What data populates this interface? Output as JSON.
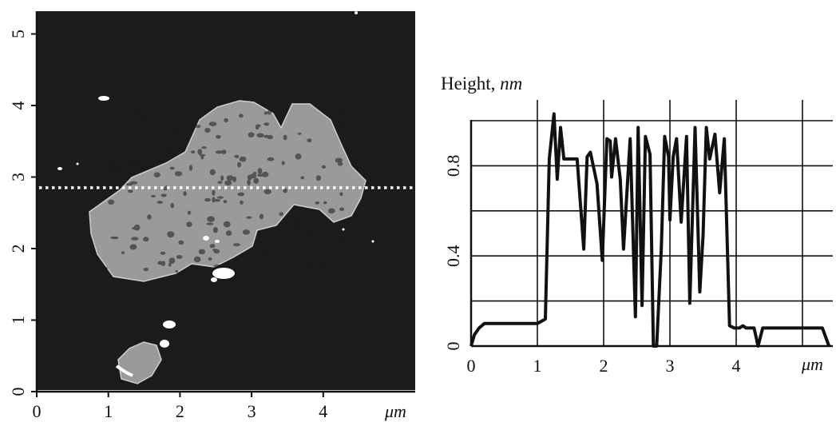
{
  "chart_data": [
    {
      "type": "heatmap",
      "description_type": "afm-topography-image",
      "x_ticks": [
        "0",
        "1",
        "2",
        "3",
        "4"
      ],
      "y_ticks": [
        "0",
        "1",
        "2",
        "3",
        "4",
        "5"
      ],
      "x_unit": "μm",
      "xlim": [
        0,
        5.2
      ],
      "ylim": [
        0,
        5.2
      ],
      "scan_line_y": 2.85,
      "colors": {
        "background": "#1a1a1a",
        "feature": "#a8a8a8",
        "scan_line": "#ffffff"
      }
    },
    {
      "type": "line",
      "title": "Height, ",
      "title_unit": "nm",
      "x_ticks": [
        "0",
        "1",
        "2",
        "3",
        "4"
      ],
      "y_ticks": [
        "0",
        "0.4",
        "0.8"
      ],
      "x_unit": "μm",
      "xlim": [
        0,
        5.5
      ],
      "ylim": [
        0,
        1.05
      ],
      "grid": true,
      "series": [
        {
          "x": [
            0.0,
            0.05,
            0.12,
            0.2,
            0.5,
            1.0,
            1.12,
            1.18,
            1.25,
            1.3,
            1.35,
            1.4,
            1.48,
            1.6,
            1.7,
            1.75,
            1.8,
            1.9,
            1.98,
            2.05,
            2.1,
            2.12,
            2.18,
            2.25,
            2.3,
            2.4,
            2.48,
            2.52,
            2.58,
            2.63,
            2.7,
            2.75,
            2.8,
            2.87,
            2.92,
            2.98,
            3.0,
            3.05,
            3.1,
            3.17,
            3.25,
            3.3,
            3.38,
            3.45,
            3.5,
            3.55,
            3.6,
            3.68,
            3.75,
            3.82,
            3.9,
            3.97,
            4.05,
            4.1,
            4.15,
            4.2,
            4.27,
            4.33,
            4.4,
            4.45,
            4.5,
            4.6,
            4.8,
            4.95,
            5.0,
            5.1,
            5.3,
            5.4
          ],
          "y": [
            0.0,
            0.05,
            0.08,
            0.1,
            0.1,
            0.1,
            0.12,
            0.83,
            1.03,
            0.74,
            0.97,
            0.83,
            0.83,
            0.83,
            0.43,
            0.84,
            0.86,
            0.72,
            0.38,
            0.92,
            0.91,
            0.75,
            0.92,
            0.74,
            0.43,
            0.92,
            0.13,
            0.97,
            0.18,
            0.93,
            0.85,
            0.0,
            0.0,
            0.43,
            0.93,
            0.84,
            0.56,
            0.84,
            0.92,
            0.55,
            0.93,
            0.19,
            0.97,
            0.24,
            0.49,
            0.97,
            0.83,
            0.94,
            0.68,
            0.92,
            0.09,
            0.08,
            0.08,
            0.09,
            0.08,
            0.08,
            0.08,
            0.0,
            0.08,
            0.08,
            0.08,
            0.08,
            0.08,
            0.08,
            0.08,
            0.08,
            0.08,
            0.0
          ]
        }
      ]
    }
  ]
}
